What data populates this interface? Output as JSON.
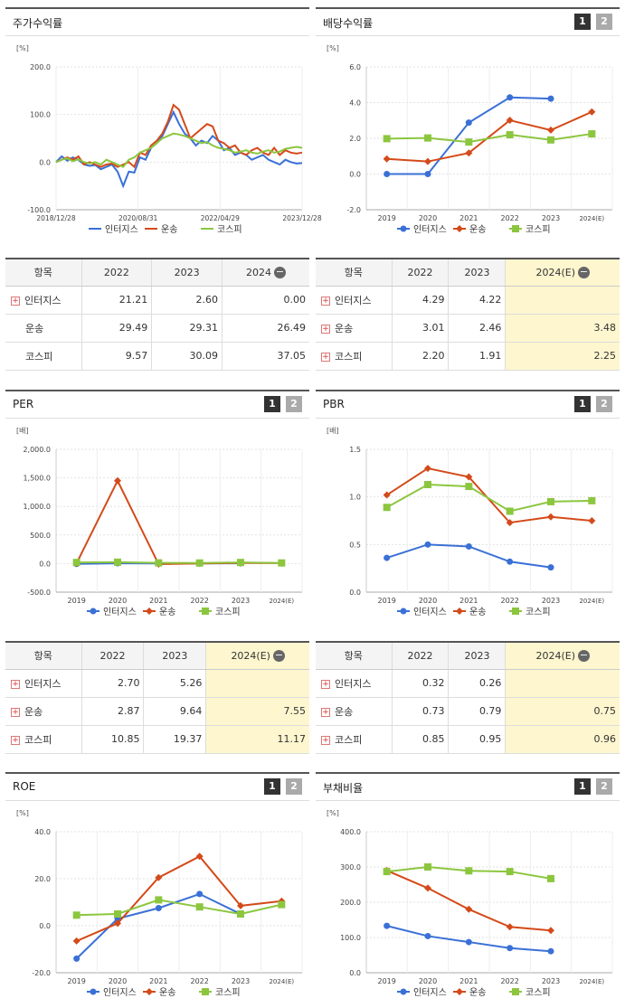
{
  "legend": [
    "인터지스",
    "운송",
    "코스피"
  ],
  "colors": {
    "a": "#3a70d6",
    "b": "#d44a1a",
    "c": "#8cc63f"
  },
  "btn1": "1",
  "btn2": "2",
  "panels": {
    "p1": {
      "title": "주가수익률",
      "unit": "[%]"
    },
    "p2": {
      "title": "배당수익률",
      "unit": "[%]"
    },
    "p3": {
      "title": "PER",
      "unit": "[배]"
    },
    "p4": {
      "title": "PBR",
      "unit": "[배]"
    },
    "p5": {
      "title": "ROE",
      "unit": "[%]"
    },
    "p6": {
      "title": "부채비율",
      "unit": "[%]"
    }
  },
  "tables": {
    "t1": {
      "hdr": "항목",
      "cols": [
        "2022",
        "2023",
        "2024"
      ],
      "rows": [
        {
          "name": "인터지스",
          "plus": true,
          "v": [
            "21.21",
            "2.60",
            "0.00"
          ]
        },
        {
          "name": "운송",
          "plus": false,
          "v": [
            "29.49",
            "29.31",
            "26.49"
          ]
        },
        {
          "name": "코스피",
          "plus": false,
          "v": [
            "9.57",
            "30.09",
            "37.05"
          ]
        }
      ]
    },
    "t2": {
      "hdr": "항목",
      "cols": [
        "2022",
        "2023",
        "2024(E)"
      ],
      "rows": [
        {
          "name": "인터지스",
          "plus": true,
          "v": [
            "4.29",
            "4.22",
            ""
          ]
        },
        {
          "name": "운송",
          "plus": true,
          "v": [
            "3.01",
            "2.46",
            "3.48"
          ]
        },
        {
          "name": "코스피",
          "plus": true,
          "v": [
            "2.20",
            "1.91",
            "2.25"
          ]
        }
      ]
    },
    "t3": {
      "hdr": "항목",
      "cols": [
        "2022",
        "2023",
        "2024(E)"
      ],
      "rows": [
        {
          "name": "인터지스",
          "plus": true,
          "v": [
            "2.70",
            "5.26",
            ""
          ]
        },
        {
          "name": "운송",
          "plus": true,
          "v": [
            "2.87",
            "9.64",
            "7.55"
          ]
        },
        {
          "name": "코스피",
          "plus": true,
          "v": [
            "10.85",
            "19.37",
            "11.17"
          ]
        }
      ]
    },
    "t4": {
      "hdr": "항목",
      "cols": [
        "2022",
        "2023",
        "2024(E)"
      ],
      "rows": [
        {
          "name": "인터지스",
          "plus": true,
          "v": [
            "0.32",
            "0.26",
            ""
          ]
        },
        {
          "name": "운송",
          "plus": true,
          "v": [
            "0.73",
            "0.79",
            "0.75"
          ]
        },
        {
          "name": "코스피",
          "plus": true,
          "v": [
            "0.85",
            "0.95",
            "0.96"
          ]
        }
      ]
    }
  },
  "chart_data": [
    {
      "type": "line",
      "ymin": -100,
      "ymax": 200,
      "yticks": [
        "200.0",
        "100.0",
        "0.0",
        "-100.0"
      ],
      "xticks": [
        "2018/12/28",
        "2020/08/31",
        "2022/04/29",
        "2023/12/28"
      ],
      "series": [
        {
          "name": "인터지스",
          "values": [
            0,
            12,
            3,
            10,
            5,
            -5,
            -8,
            -6,
            -15,
            -10,
            -5,
            -20,
            -50,
            -20,
            -22,
            10,
            5,
            30,
            40,
            55,
            80,
            105,
            80,
            60,
            50,
            35,
            45,
            40,
            55,
            45,
            25,
            30,
            15,
            20,
            15,
            5,
            10,
            15,
            5,
            0,
            -5,
            5,
            0,
            -3,
            -2
          ]
        },
        {
          "name": "운송",
          "values": [
            0,
            5,
            10,
            5,
            12,
            -5,
            0,
            -5,
            -10,
            -5,
            -3,
            -10,
            -5,
            0,
            -10,
            20,
            15,
            35,
            45,
            60,
            85,
            120,
            110,
            80,
            50,
            60,
            70,
            80,
            75,
            45,
            40,
            30,
            35,
            20,
            15,
            25,
            30,
            20,
            15,
            30,
            15,
            25,
            20,
            18,
            20
          ]
        },
        {
          "name": "코스피",
          "values": [
            0,
            5,
            8,
            2,
            6,
            0,
            -3,
            0,
            -5,
            5,
            0,
            -5,
            -10,
            5,
            10,
            20,
            25,
            30,
            40,
            50,
            55,
            60,
            58,
            55,
            50,
            45,
            40,
            42,
            35,
            30,
            28,
            25,
            20,
            22,
            25,
            20,
            18,
            22,
            25,
            20,
            22,
            28,
            30,
            32,
            30
          ]
        }
      ]
    },
    {
      "type": "line",
      "ymin": -2,
      "ymax": 6,
      "yticks": [
        "6.0",
        "4.0",
        "2.0",
        "0.0",
        "-2.0"
      ],
      "categories": [
        "2019",
        "2020",
        "2021",
        "2022",
        "2023",
        "2024(E)"
      ],
      "series": [
        {
          "name": "인터지스",
          "values": [
            0.0,
            0.0,
            2.88,
            4.29,
            4.22,
            null
          ]
        },
        {
          "name": "운송",
          "values": [
            0.85,
            0.7,
            1.18,
            3.01,
            2.46,
            3.48
          ]
        },
        {
          "name": "코스피",
          "values": [
            1.98,
            2.02,
            1.79,
            2.2,
            1.91,
            2.25
          ]
        }
      ]
    },
    {
      "type": "line",
      "ymin": -500,
      "ymax": 2000,
      "yticks": [
        "2,000.0",
        "1,500.0",
        "1,000.0",
        "500.0",
        "0.0",
        "-500.0"
      ],
      "categories": [
        "2019",
        "2020",
        "2021",
        "2022",
        "2023",
        "2024(E)"
      ],
      "series": [
        {
          "name": "인터지스",
          "values": [
            -5,
            5,
            2,
            2.7,
            5.26,
            null
          ]
        },
        {
          "name": "운송",
          "values": [
            5,
            1450,
            -10,
            2.87,
            9.64,
            7.55
          ]
        },
        {
          "name": "코스피",
          "values": [
            20,
            25,
            13,
            10.85,
            19.37,
            11.17
          ]
        }
      ]
    },
    {
      "type": "line",
      "ymin": 0,
      "ymax": 1.5,
      "yticks": [
        "1.5",
        "1.0",
        "0.5",
        "0.0"
      ],
      "categories": [
        "2019",
        "2020",
        "2021",
        "2022",
        "2023",
        "2024(E)"
      ],
      "series": [
        {
          "name": "인터지스",
          "values": [
            0.36,
            0.5,
            0.48,
            0.32,
            0.26,
            null
          ]
        },
        {
          "name": "운송",
          "values": [
            1.02,
            1.3,
            1.21,
            0.73,
            0.79,
            0.75
          ]
        },
        {
          "name": "코스피",
          "values": [
            0.89,
            1.13,
            1.11,
            0.85,
            0.95,
            0.96
          ]
        }
      ]
    },
    {
      "type": "line",
      "ymin": -20,
      "ymax": 40,
      "yticks": [
        "40.0",
        "20.0",
        "0.0",
        "-20.0"
      ],
      "categories": [
        "2019",
        "2020",
        "2021",
        "2022",
        "2023",
        "2024(E)"
      ],
      "series": [
        {
          "name": "인터지스",
          "values": [
            -14,
            3,
            7.5,
            13.5,
            5,
            null
          ]
        },
        {
          "name": "운송",
          "values": [
            -6.5,
            1,
            20.5,
            29.5,
            8.5,
            10.5
          ]
        },
        {
          "name": "코스피",
          "values": [
            4.5,
            5,
            11,
            8,
            5,
            9
          ]
        }
      ]
    },
    {
      "type": "line",
      "ymin": 0,
      "ymax": 400,
      "yticks": [
        "400.0",
        "300.0",
        "200.0",
        "100.0",
        "0.0"
      ],
      "categories": [
        "2019",
        "2020",
        "2021",
        "2022",
        "2023",
        "2024(E)"
      ],
      "series": [
        {
          "name": "인터지스",
          "values": [
            133,
            104,
            87,
            70,
            61,
            null
          ]
        },
        {
          "name": "운송",
          "values": [
            290,
            240,
            180,
            130,
            120,
            null
          ]
        },
        {
          "name": "코스피",
          "values": [
            287,
            300,
            289,
            287,
            267,
            null
          ]
        }
      ]
    }
  ]
}
